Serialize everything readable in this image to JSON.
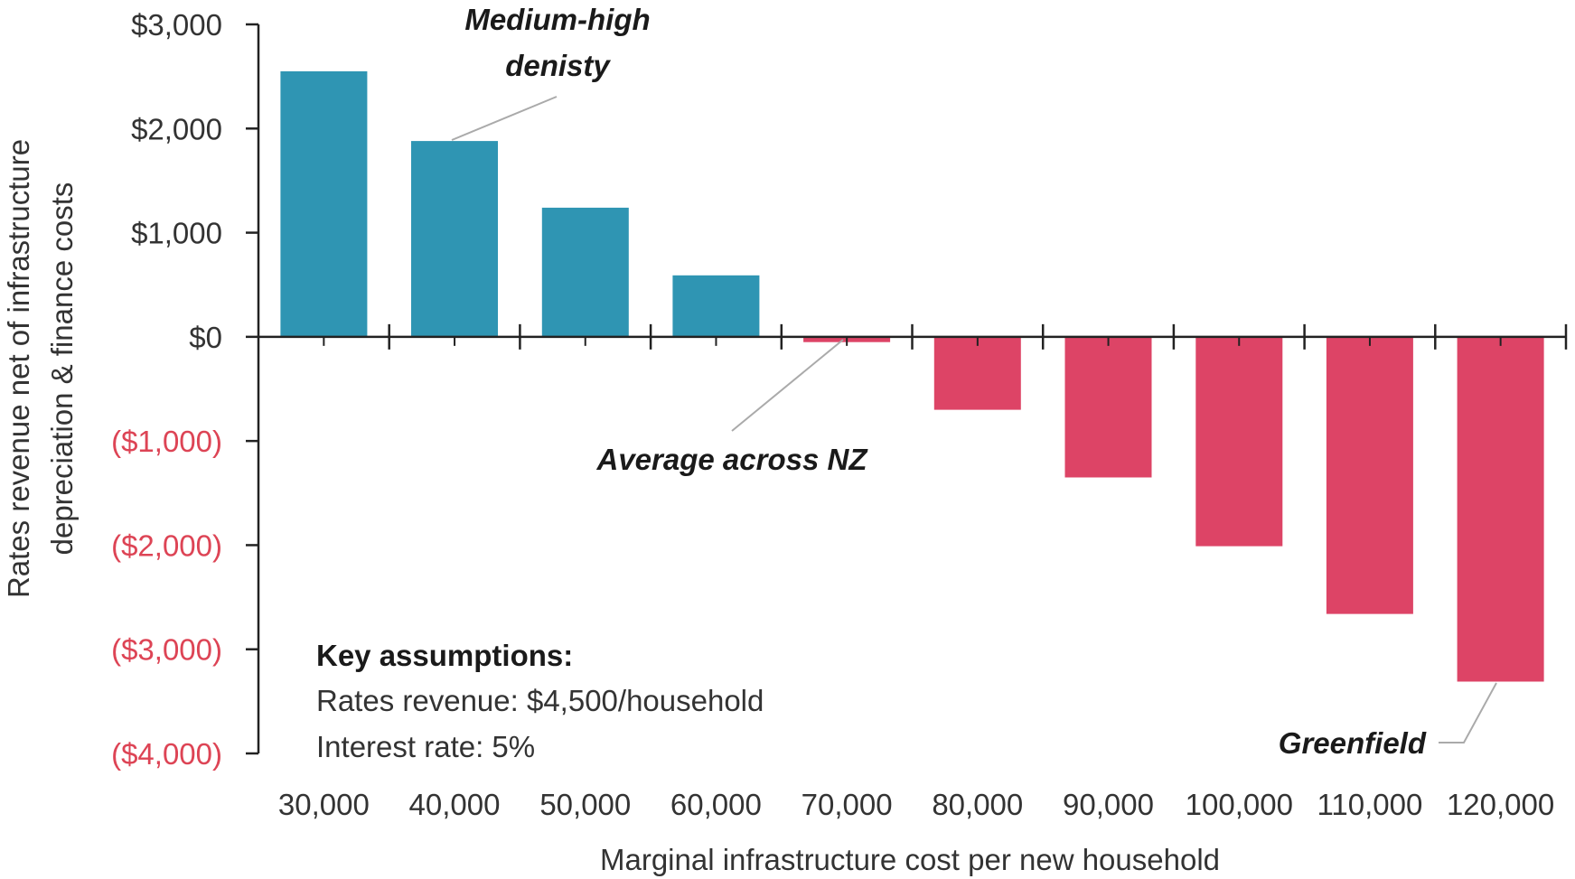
{
  "chart_data": {
    "type": "bar",
    "categories": [
      "30,000",
      "40,000",
      "50,000",
      "60,000",
      "70,000",
      "80,000",
      "90,000",
      "100,000",
      "110,000",
      "120,000"
    ],
    "values": [
      2550,
      1880,
      1240,
      590,
      -50,
      -700,
      -1350,
      -2010,
      -2660,
      -3310
    ],
    "xlabel": "Marginal infrastructure cost per new household",
    "ylabel_lines": [
      "Rates revenue net of infrastructure",
      "depreciation & finance costs"
    ],
    "ylim": [
      -4000,
      3000
    ],
    "yticks": [
      {
        "value": 3000,
        "label": "$3,000"
      },
      {
        "value": 2000,
        "label": "$2,000"
      },
      {
        "value": 1000,
        "label": "$1,000"
      },
      {
        "value": 0,
        "label": "$0"
      },
      {
        "value": -1000,
        "label": "($1,000)"
      },
      {
        "value": -2000,
        "label": "($2,000)"
      },
      {
        "value": -3000,
        "label": "($3,000)"
      },
      {
        "value": -4000,
        "label": "($4,000)"
      }
    ],
    "colors": {
      "positive_bar": "#2f95b3",
      "negative_bar": "#dd4466",
      "negative_tick_label": "#dd4455",
      "positive_tick_label": "#333333",
      "axis": "#222222",
      "leader": "#aaaaaa"
    },
    "annotations": [
      {
        "lines": [
          "Medium-high",
          "denisty"
        ],
        "category": "40,000"
      },
      {
        "lines": [
          "Average across NZ"
        ],
        "category": "70,000"
      },
      {
        "lines": [
          "Greenfield"
        ],
        "category": "120,000"
      }
    ],
    "key_assumptions": {
      "heading": "Key assumptions:",
      "lines": [
        "Rates revenue: $4,500/household",
        "Interest rate: 5%"
      ]
    },
    "grid": false,
    "legend": "none"
  }
}
